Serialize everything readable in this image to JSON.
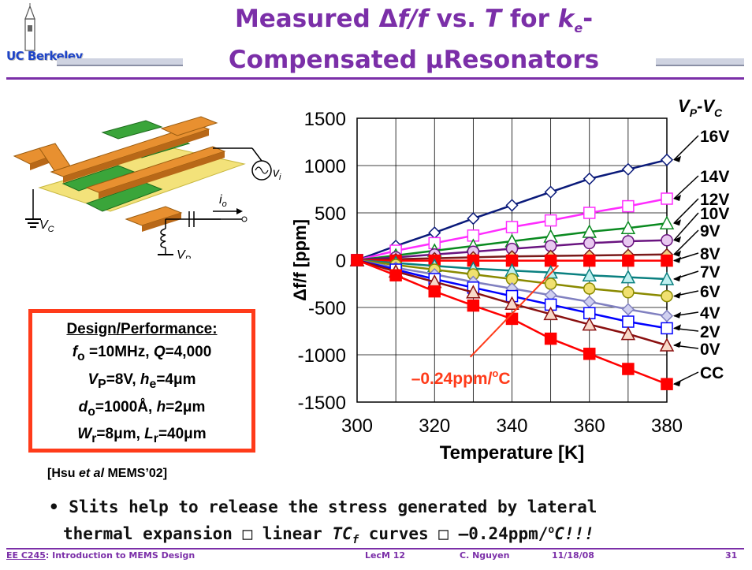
{
  "slide": {
    "title_line1_pre": "Measured ",
    "title_delta": "Δ",
    "title_ff": "f/f",
    "title_vs": " vs. ",
    "title_T": "T",
    "title_for": " for ",
    "title_k": "k",
    "title_k_sub": "e",
    "title_dash": "-",
    "title_line2": "Compensated μResonators",
    "logo_text": "UC Berkeley"
  },
  "device": {
    "vi": "v",
    "vi_sub": "i",
    "io": "i",
    "io_sub": "o",
    "vc": "V",
    "vc_sub": "C",
    "vp": "V",
    "vp_sub": "P"
  },
  "design": {
    "heading": "Design/Performance:",
    "l1a": "f",
    "l1b": "o",
    "l1c": " =10MHz, ",
    "l1d": "Q",
    "l1e": "=4,000",
    "l2a": "V",
    "l2b": "P",
    "l2c": "=8V, ",
    "l2d": "h",
    "l2e": "e",
    "l2f": "=4μm",
    "l3a": "d",
    "l3b": "o",
    "l3c": "=1000Å, ",
    "l3d": "h",
    "l3e": "=2μm",
    "l4a": "W",
    "l4b": "r",
    "l4c": "=8μm, ",
    "l4d": "L",
    "l4e": "r",
    "l4f": "=40μm"
  },
  "citation": {
    "a": "[Hsu ",
    "b": "et al",
    "c": " MEMS’02]"
  },
  "bullet": {
    "mark": "•",
    "line1": " Slits help to release the stress generated by lateral",
    "line2a": "thermal expansion ",
    "arrow1": "□",
    "line2b": " linear ",
    "tc": "TC",
    "tc_sub": "f",
    "line2c": " curves ",
    "arrow2": "□",
    "line2d": " –0.24ppm/",
    "deg": "o",
    "line2e": "C!!!"
  },
  "footer": {
    "course": "EE C245",
    "course_title": ": Introduction to MEMS Design",
    "lecture": "LecM 12",
    "author": "C. Nguyen",
    "date": "11/18/08",
    "page": "31"
  },
  "colors": {
    "title": "#7b2fa8",
    "box": "#ff3b1a",
    "annotation": "#ff3b1a"
  },
  "chart_data": {
    "type": "line",
    "xlabel": "Temperature [K]",
    "ylabel": "Δf/f [ppm]",
    "legend_title": "V",
    "legend_title_sub1": "P",
    "legend_title_mid": "-V",
    "legend_title_sub2": "C",
    "xlim": [
      300,
      380
    ],
    "ylim": [
      -1500,
      1500
    ],
    "x_ticks": [
      300,
      320,
      340,
      360,
      380
    ],
    "y_ticks": [
      1500,
      1000,
      500,
      0,
      -500,
      -1000,
      -1500
    ],
    "grid": true,
    "x": [
      300,
      310,
      320,
      330,
      340,
      350,
      360,
      370,
      380
    ],
    "annotation": {
      "text_pre": "–0.24ppm/",
      "text_sup": "o",
      "text_post": "C",
      "x": 315,
      "y": -1240,
      "arrow_to_x": 352,
      "arrow_to_y": -5
    },
    "series": [
      {
        "name": "16V",
        "color": "#0a1a7a",
        "marker": "diamond",
        "fill": "#ffffff",
        "values": [
          0,
          150,
          290,
          440,
          580,
          720,
          860,
          960,
          1060
        ]
      },
      {
        "name": "14V",
        "color": "#ff2cff",
        "marker": "square",
        "fill": "#ffffff",
        "values": [
          0,
          100,
          180,
          260,
          350,
          420,
          500,
          570,
          650
        ]
      },
      {
        "name": "12V",
        "color": "#0a8a20",
        "marker": "triangle",
        "fill": "#ffffff",
        "values": [
          0,
          50,
          100,
          150,
          200,
          250,
          300,
          340,
          390
        ]
      },
      {
        "name": "10V",
        "color": "#6a1480",
        "marker": "circle",
        "fill": "#e8c8f0",
        "values": [
          0,
          30,
          60,
          90,
          120,
          150,
          180,
          200,
          210
        ]
      },
      {
        "name": "9V",
        "color": "#7a1a1a",
        "marker": "diamond",
        "fill": "#f0d080",
        "values": [
          0,
          10,
          20,
          30,
          40,
          45,
          50,
          55,
          60
        ]
      },
      {
        "name": "8V",
        "color": "#ff0000",
        "marker": "square",
        "fill": "#ff0000",
        "values": [
          0,
          -5,
          -5,
          -5,
          -5,
          -5,
          -5,
          -5,
          -5
        ]
      },
      {
        "name": "7V",
        "color": "#0a8080",
        "marker": "triangle",
        "fill": "#c0f0f0",
        "values": [
          0,
          -30,
          -60,
          -90,
          -110,
          -130,
          -160,
          -180,
          -200
        ]
      },
      {
        "name": "6V",
        "color": "#8a8a00",
        "marker": "circle",
        "fill": "#f0e070",
        "values": [
          0,
          -50,
          -100,
          -150,
          -200,
          -250,
          -300,
          -340,
          -380
        ]
      },
      {
        "name": "4V",
        "color": "#8080c0",
        "marker": "diamond",
        "fill": "#d0d0f0",
        "values": [
          0,
          -80,
          -150,
          -230,
          -300,
          -370,
          -440,
          -520,
          -590
        ]
      },
      {
        "name": "2V",
        "color": "#0000ff",
        "marker": "square",
        "fill": "#ffffff",
        "values": [
          0,
          -100,
          -200,
          -290,
          -380,
          -470,
          -560,
          -650,
          -720
        ]
      },
      {
        "name": "0V",
        "color": "#8a1010",
        "marker": "triangle",
        "fill": "#f8d8c8",
        "values": [
          0,
          -120,
          -230,
          -340,
          -460,
          -570,
          -680,
          -780,
          -900
        ]
      },
      {
        "name": "CC",
        "color": "#ff0000",
        "marker": "square",
        "fill": "#ff0000",
        "values": [
          0,
          -160,
          -330,
          -480,
          -620,
          -830,
          -990,
          -1150,
          -1310
        ]
      }
    ]
  }
}
